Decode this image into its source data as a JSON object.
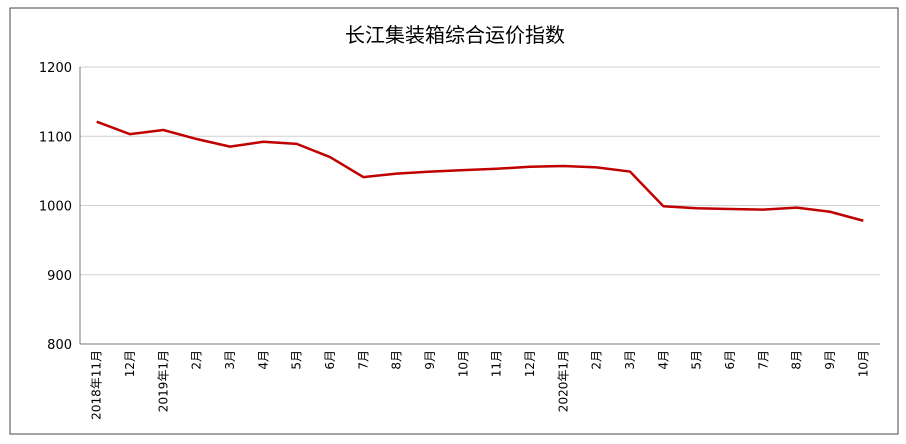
{
  "chart_data": {
    "type": "line",
    "title": "长江集装箱综合运价指数",
    "categories": [
      "2018年11月",
      "12月",
      "2019年1月",
      "2月",
      "3月",
      "4月",
      "5月",
      "6月",
      "7月",
      "8月",
      "9月",
      "10月",
      "11月",
      "12月",
      "2020年1月",
      "2月",
      "3月",
      "4月",
      "5月",
      "6月",
      "7月",
      "8月",
      "9月",
      "10月"
    ],
    "series": [
      {
        "name": "长江集装箱综合运价指数",
        "color": "#c00000",
        "values": [
          1121,
          1103,
          1109,
          1096,
          1085,
          1092,
          1089,
          1070,
          1041,
          1046,
          1049,
          1051,
          1053,
          1056,
          1057,
          1055,
          1049,
          999,
          996,
          995,
          994,
          997,
          991,
          978
        ]
      }
    ],
    "ylim": [
      800,
      1200
    ],
    "yticks": [
      800,
      900,
      1000,
      1100,
      1200
    ],
    "grid": true
  }
}
